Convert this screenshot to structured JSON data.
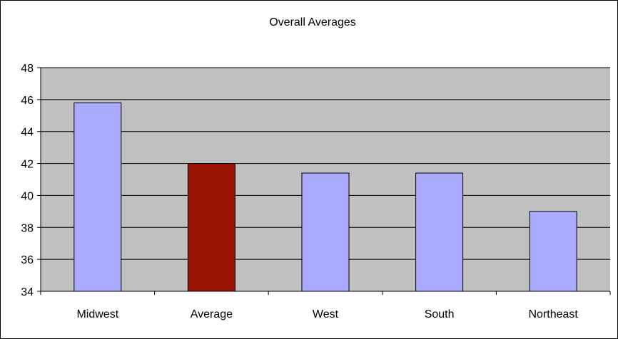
{
  "chart_data": {
    "type": "bar",
    "title": "Overall Averages",
    "xlabel": "",
    "ylabel": "",
    "categories": [
      "Midwest",
      "Average",
      "West",
      "South",
      "Northeast"
    ],
    "values": [
      45.8,
      42.0,
      41.4,
      41.4,
      39.0
    ],
    "ylim": [
      34,
      48
    ],
    "yticks": [
      "34",
      "36",
      "38",
      "40",
      "42",
      "44",
      "46",
      "48"
    ],
    "grid": true,
    "legend": "none",
    "colors": {
      "bar": "#aaaaff",
      "highlight_bar": "#991100",
      "plot_background": "#c0c0c0",
      "gridline": "#000000"
    },
    "highlight_category": "Average"
  }
}
